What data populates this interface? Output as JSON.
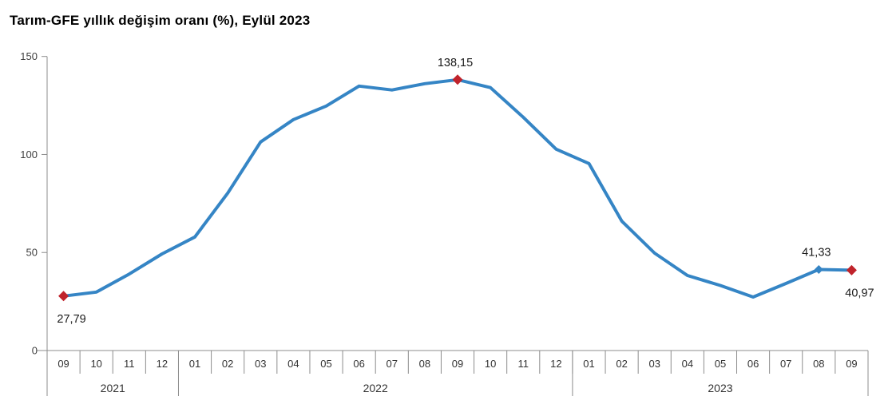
{
  "title": "Tarım-GFE yıllık değişim oranı (%), Eylül 2023",
  "colors": {
    "line": "#3585C5",
    "marker_red": "#C0232B",
    "marker_blue": "#3585C5",
    "axis": "#8C8C8C",
    "tick_text": "#404040",
    "label_text": "#1a1a1a"
  },
  "chart_data": {
    "type": "line",
    "title": "Tarım-GFE yıllık değişim oranı (%), Eylül 2023",
    "xlabel": "",
    "ylabel": "",
    "ylim": [
      0,
      150
    ],
    "yticks": [
      0,
      50,
      100,
      150
    ],
    "grid": false,
    "legend_position": "none",
    "x_groups": [
      {
        "year": "2021",
        "months": [
          "09",
          "10",
          "11",
          "12"
        ]
      },
      {
        "year": "2022",
        "months": [
          "01",
          "02",
          "03",
          "04",
          "05",
          "06",
          "07",
          "08",
          "09",
          "10",
          "11",
          "12"
        ]
      },
      {
        "year": "2023",
        "months": [
          "01",
          "02",
          "03",
          "04",
          "05",
          "06",
          "07",
          "08",
          "09"
        ]
      }
    ],
    "series": [
      {
        "name": "Tarım-GFE yıllık değişim oranı (%)",
        "values": [
          27.79,
          29.8,
          39.0,
          49.3,
          57.9,
          80.3,
          106.4,
          117.8,
          124.7,
          134.9,
          132.9,
          136.1,
          138.15,
          134.1,
          119.0,
          102.7,
          95.4,
          66.0,
          49.7,
          38.3,
          33.2,
          27.3,
          34.2,
          41.33,
          40.97
        ]
      }
    ],
    "annotations": [
      {
        "index": 0,
        "label": "27,79",
        "position": "below",
        "marker": "red-diamond"
      },
      {
        "index": 12,
        "label": "138,15",
        "position": "above",
        "marker": "red-diamond"
      },
      {
        "index": 23,
        "label": "41,33",
        "position": "above",
        "marker": "blue-diamond"
      },
      {
        "index": 24,
        "label": "40,97",
        "position": "below",
        "marker": "red-diamond"
      }
    ]
  }
}
